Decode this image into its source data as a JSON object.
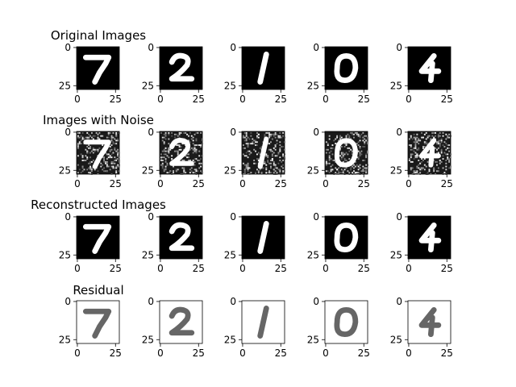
{
  "chart_data": {
    "type": "image-grid",
    "title": "",
    "row_titles": [
      "Original Images",
      "Images with Noise",
      "Reconstructed Images",
      "Residual"
    ],
    "digits": [
      "7",
      "2",
      "1",
      "0",
      "4"
    ],
    "axes": {
      "x_ticks": [
        0,
        25
      ],
      "y_ticks": [
        0,
        25
      ],
      "xlim": [
        -0.5,
        27.5
      ],
      "ylim": [
        27.5,
        -0.5
      ],
      "image_size": [
        28,
        28
      ]
    },
    "row_styles": [
      {
        "name": "Original Images",
        "background": "#000000",
        "stroke": "#ffffff",
        "noise": false
      },
      {
        "name": "Images with Noise",
        "background": "#1a1a1a",
        "stroke": "#ffffff",
        "noise": true
      },
      {
        "name": "Reconstructed Images",
        "background": "#000000",
        "stroke": "#ffffff",
        "noise": false
      },
      {
        "name": "Residual",
        "background": "#ffffff",
        "stroke": "#666666",
        "noise": false
      }
    ],
    "grid": false
  }
}
